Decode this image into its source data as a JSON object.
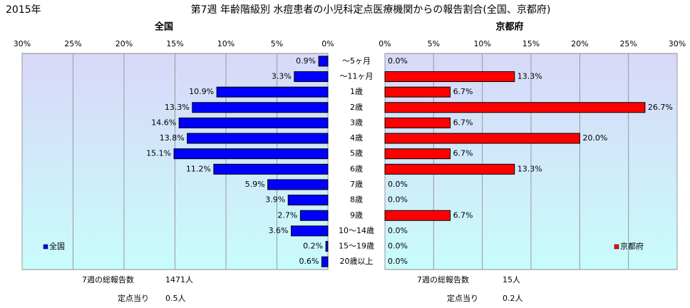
{
  "header": {
    "year": "2015年",
    "title": "第7週 年齢階級別 水痘患者の小児科定点医療機関からの報告割合(全国、京都府)"
  },
  "chart_data": [
    {
      "type": "bar",
      "orientation": "horizontal",
      "title": "全国",
      "categories": [
        "～5ヶ月",
        "～11ヶ月",
        "1歳",
        "2歳",
        "3歳",
        "4歳",
        "5歳",
        "6歳",
        "7歳",
        "8歳",
        "9歳",
        "10～14歳",
        "15～19歳",
        "20歳以上"
      ],
      "series": [
        {
          "name": "全国",
          "color": "#0000ff",
          "values": [
            0.9,
            3.3,
            10.9,
            13.3,
            14.6,
            13.8,
            15.1,
            11.2,
            5.9,
            3.9,
            2.7,
            3.6,
            0.2,
            0.6
          ],
          "value_labels": [
            "0.9%",
            "3.3%",
            "10.9%",
            "13.3%",
            "14.6%",
            "13.8%",
            "15.1%",
            "11.2%",
            "5.9%",
            "3.9%",
            "2.7%",
            "3.6%",
            "0.2%",
            "0.6%"
          ]
        }
      ],
      "xlim": [
        0,
        30
      ],
      "x_inverted": true,
      "xticks": [
        {
          "value": 0,
          "label": "0%"
        },
        {
          "value": 5,
          "label": "5%"
        },
        {
          "value": 10,
          "label": "10%"
        },
        {
          "value": 15,
          "label": "15%"
        },
        {
          "value": 20,
          "label": "20%"
        },
        {
          "value": 25,
          "label": "25%"
        },
        {
          "value": 30,
          "label": "30%"
        }
      ],
      "grid": true,
      "legend": "lower-left",
      "notes": [
        [
          "7週の総報告数",
          "1471人"
        ],
        [
          "定点当り",
          "0.5人"
        ]
      ]
    },
    {
      "type": "bar",
      "orientation": "horizontal",
      "title": "京都府",
      "series": [
        {
          "name": "京都府",
          "color": "#ff0000",
          "values": [
            0.0,
            13.3,
            6.7,
            26.7,
            6.7,
            20.0,
            6.7,
            13.3,
            0.0,
            0.0,
            6.7,
            0.0,
            0.0,
            0.0
          ],
          "value_labels": [
            "0.0%",
            "13.3%",
            "6.7%",
            "26.7%",
            "6.7%",
            "20.0%",
            "6.7%",
            "13.3%",
            "0.0%",
            "0.0%",
            "6.7%",
            "0.0%",
            "0.0%",
            "0.0%"
          ]
        }
      ],
      "xlim": [
        0,
        30
      ],
      "x_inverted": false,
      "xticks": [
        {
          "value": 0,
          "label": "0%"
        },
        {
          "value": 5,
          "label": "5%"
        },
        {
          "value": 10,
          "label": "10%"
        },
        {
          "value": 15,
          "label": "15%"
        },
        {
          "value": 20,
          "label": "20%"
        },
        {
          "value": 25,
          "label": "25%"
        },
        {
          "value": 30,
          "label": "30%"
        }
      ],
      "grid": true,
      "legend": "lower-right",
      "notes": [
        [
          "7週の総報告数",
          "15人"
        ],
        [
          "定点当り",
          "0.2人"
        ]
      ]
    }
  ]
}
